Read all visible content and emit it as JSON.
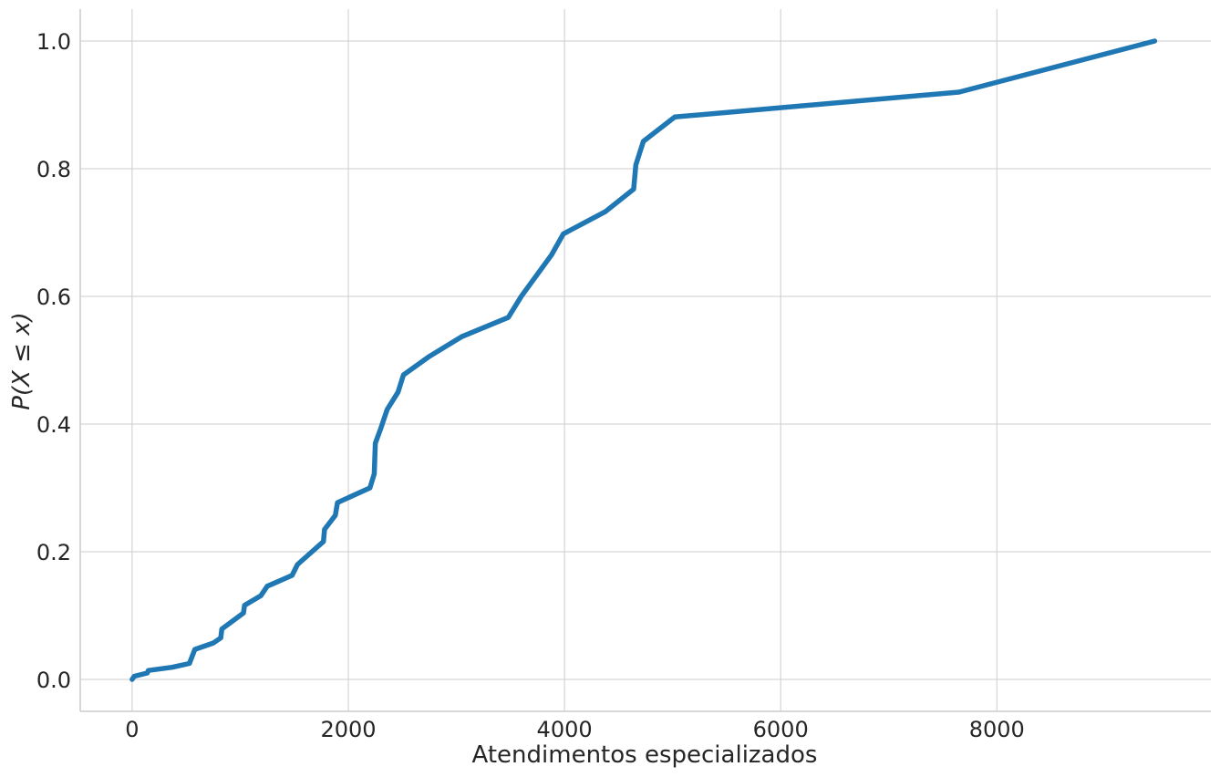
{
  "chart_data": {
    "type": "line",
    "title": "",
    "xlabel": "Atendimentos especializados",
    "ylabel": "P(X ≤ x)",
    "xlim": [
      -480,
      9980
    ],
    "ylim": [
      -0.05,
      1.05
    ],
    "xticks": [
      0,
      2000,
      4000,
      6000,
      8000
    ],
    "xtick_labels": [
      "0",
      "2000",
      "4000",
      "6000",
      "8000"
    ],
    "yticks": [
      0.0,
      0.2,
      0.4,
      0.6,
      0.8,
      1.0
    ],
    "ytick_labels": [
      "0.0",
      "0.2",
      "0.4",
      "0.6",
      "0.8",
      "1.0"
    ],
    "grid": true,
    "color": "#1f77b4",
    "series": [
      {
        "x": [
          0,
          20,
          140,
          150,
          370,
          530,
          580,
          750,
          820,
          830,
          1030,
          1040,
          1190,
          1250,
          1480,
          1530,
          1770,
          1780,
          1880,
          1900,
          2200,
          2240,
          2250,
          2300,
          2360,
          2460,
          2510,
          2750,
          3050,
          3480,
          3600,
          3880,
          3990,
          4380,
          4640,
          4660,
          4730,
          5020,
          7650,
          9460
        ],
        "y": [
          0.0,
          0.005,
          0.01,
          0.014,
          0.019,
          0.025,
          0.047,
          0.057,
          0.065,
          0.079,
          0.104,
          0.116,
          0.131,
          0.146,
          0.163,
          0.18,
          0.216,
          0.235,
          0.257,
          0.277,
          0.3,
          0.322,
          0.37,
          0.393,
          0.423,
          0.45,
          0.477,
          0.506,
          0.537,
          0.567,
          0.6,
          0.665,
          0.698,
          0.733,
          0.768,
          0.806,
          0.843,
          0.881,
          0.92,
          1.0
        ]
      }
    ]
  }
}
